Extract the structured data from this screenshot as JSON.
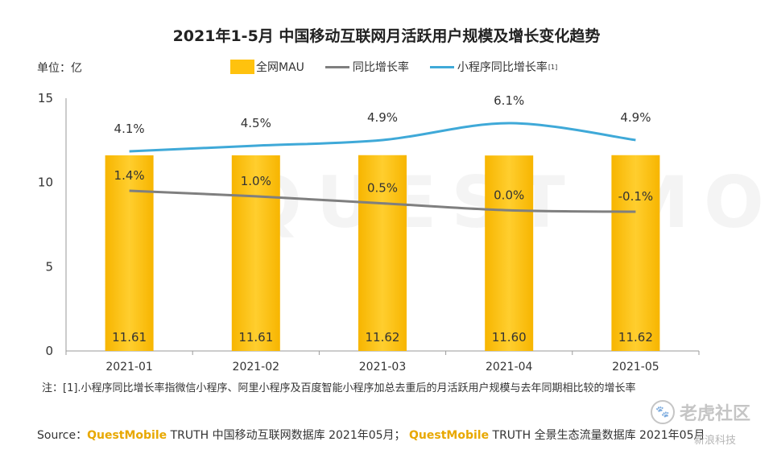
{
  "chart_data": {
    "type": "bar",
    "title": "2021年1-5月 中国移动互联网月活跃用户规模及增长变化趋势",
    "unit_label": "单位：亿",
    "categories": [
      "2021-01",
      "2021-02",
      "2021-03",
      "2021-04",
      "2021-05"
    ],
    "ylim": [
      0,
      15
    ],
    "yticks": [
      "0",
      "5",
      "10",
      "15"
    ],
    "series": [
      {
        "name": "全网MAU",
        "kind": "bar",
        "color": "#ffc20e",
        "values": [
          11.61,
          11.61,
          11.62,
          11.6,
          11.62
        ],
        "labels": [
          "11.61",
          "11.61",
          "11.62",
          "11.60",
          "11.62"
        ]
      },
      {
        "name": "同比增长率",
        "kind": "line",
        "color": "#7f7f7f",
        "values": [
          1.4,
          1.0,
          0.5,
          0.0,
          -0.1
        ],
        "labels": [
          "1.4%",
          "1.0%",
          "0.5%",
          "0.0%",
          "-0.1%"
        ]
      },
      {
        "name": "小程序同比增长率",
        "legend_sup": "[1]",
        "kind": "line",
        "color": "#3fa9d8",
        "values": [
          4.1,
          4.5,
          4.9,
          6.1,
          4.9
        ],
        "labels": [
          "4.1%",
          "4.5%",
          "4.9%",
          "6.1%",
          "4.9%"
        ]
      }
    ]
  },
  "footnote": "注：[1].小程序同比增长率指微信小程序、阿里小程序及百度智能小程序加总去重后的月活跃用户规模与去年同期相比较的增长率",
  "source": {
    "prefix": "Source：",
    "brand1": "QuestMobile",
    "text1": " TRUTH 中国移动互联网数据库 2021年05月；",
    "brand2": "QuestMobile",
    "text2": " TRUTH 全景生态流量数据库 2021年05月"
  },
  "watermark": "QUEST MOBILE",
  "community": {
    "name": "老虎社区",
    "sub": "新浪科技"
  }
}
